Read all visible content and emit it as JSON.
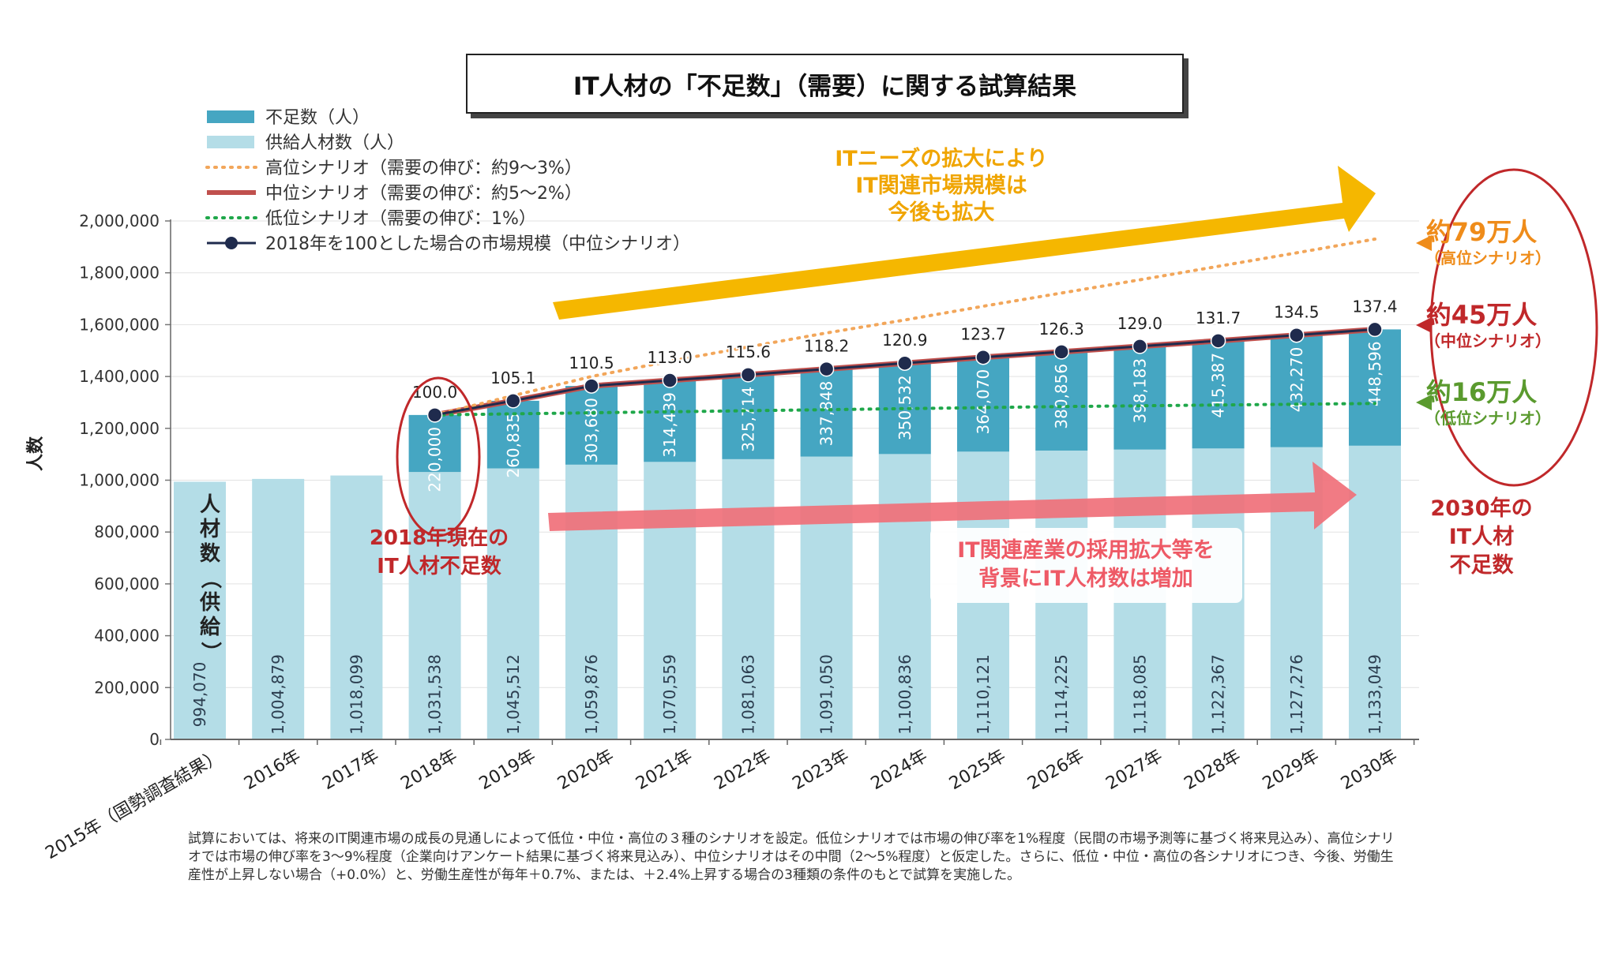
{
  "chart_data": {
    "type": "bar",
    "title": "IT人材の「不足数」（需要）に関する試算結果",
    "ylabel": "人数",
    "ylim": [
      0,
      2000000
    ],
    "yticks": [
      0,
      200000,
      400000,
      600000,
      800000,
      1000000,
      1200000,
      1400000,
      1600000,
      1800000,
      2000000
    ],
    "ytick_labels": [
      "0",
      "200,000",
      "400,000",
      "600,000",
      "800,000",
      "1,000,000",
      "1,200,000",
      "1,400,000",
      "1,600,000",
      "1,800,000",
      "2,000,000"
    ],
    "categories": [
      "2015年（国勢調査結果）",
      "2016年",
      "2017年",
      "2018年",
      "2019年",
      "2020年",
      "2021年",
      "2022年",
      "2023年",
      "2024年",
      "2025年",
      "2026年",
      "2027年",
      "2028年",
      "2029年",
      "2030年"
    ],
    "series": [
      {
        "name": "供給人材数（人）",
        "color": "#b4dde7",
        "values": [
          994070,
          1004879,
          1018099,
          1031538,
          1045512,
          1059876,
          1070559,
          1081063,
          1091050,
          1100836,
          1110121,
          1114225,
          1118085,
          1122367,
          1127276,
          1133049
        ],
        "labels": [
          "994,070",
          "1,004,879",
          "1,018,099",
          "1,031,538",
          "1,045,512",
          "1,059,876",
          "1,070,559",
          "1,081,063",
          "1,091,050",
          "1,100,836",
          "1,110,121",
          "1,114,225",
          "1,118,085",
          "1,122,367",
          "1,127,276",
          "1,133,049"
        ]
      },
      {
        "name": "不足数（人）",
        "color": "#45a6c2",
        "values": [
          null,
          null,
          null,
          220000,
          260835,
          303680,
          314439,
          325714,
          337848,
          350532,
          364070,
          380856,
          398183,
          415387,
          432270,
          448596
        ],
        "labels": [
          "",
          "",
          "",
          "220,000",
          "260,835",
          "303,680",
          "314,439",
          "325,714",
          "337,848",
          "350,532",
          "364,070",
          "380,856",
          "398,183",
          "415,387",
          "432,270",
          "448,596"
        ]
      },
      {
        "name": "高位シナリオ（需要の伸び：約9～3%）",
        "style": "dotted",
        "color": "#f2a65a",
        "values": [
          null,
          null,
          null,
          1251538,
          1326000,
          1400000,
          1459000,
          1514000,
          1568000,
          1618000,
          1671000,
          1722000,
          1773000,
          1825000,
          1877000,
          1930000
        ]
      },
      {
        "name": "中位シナリオ（需要の伸び：約5～2%）",
        "style": "solid",
        "color": "#c0504d",
        "values": [
          null,
          null,
          null,
          1251538,
          1306347,
          1363556,
          1384998,
          1406777,
          1428898,
          1451368,
          1474191,
          1495081,
          1516268,
          1537754,
          1559546,
          1581645
        ]
      },
      {
        "name": "低位シナリオ（需要の伸び：1%）",
        "style": "dotted",
        "color": "#1fa74a",
        "values": [
          null,
          null,
          null,
          1251538,
          1256000,
          1260000,
          1264000,
          1268000,
          1272000,
          1276000,
          1280000,
          1284000,
          1287000,
          1290000,
          1293000,
          1296000
        ]
      },
      {
        "name": "2018年を100とした場合の市場規模（中位シナリオ）",
        "style": "line-marker",
        "color": "#1f2b4d",
        "values": [
          null,
          null,
          null,
          1251538,
          1306347,
          1363556,
          1384998,
          1406777,
          1428898,
          1451368,
          1474191,
          1495081,
          1516268,
          1537754,
          1559546,
          1581645
        ],
        "index_values": [
          null,
          null,
          null,
          100.0,
          105.1,
          110.5,
          113.0,
          115.6,
          118.2,
          120.9,
          123.7,
          126.3,
          129.0,
          131.7,
          134.5,
          137.4
        ],
        "index_labels": [
          "",
          "",
          "",
          "100.0",
          "105.1",
          "110.5",
          "113.0",
          "115.6",
          "118.2",
          "120.9",
          "123.7",
          "126.3",
          "129.0",
          "131.7",
          "134.5",
          "137.4"
        ]
      }
    ],
    "legend_placement": "top-left",
    "annotations": {
      "supply_axis_label": "人材数（供給）",
      "yellow_arrow_text": [
        "ITニーズの拡大により",
        "IT関連市場規模は",
        "今後も拡大"
      ],
      "pink_arrow_text": [
        "IT関連産業の採用拡大等を",
        "背景にIT人材数は増加"
      ],
      "current_shortage_text": [
        "2018年現在の",
        "IT人材不足数"
      ],
      "scenario_high": "約79万人",
      "scenario_high_sub": "（高位シナリオ）",
      "scenario_mid": "約45万人",
      "scenario_mid_sub": "（中位シナリオ）",
      "scenario_low": "約16万人",
      "scenario_low_sub": "（低位シナリオ）",
      "shortage_2030_text": [
        "2030年の",
        "IT人材",
        "不足数"
      ]
    }
  },
  "footnote": "試算においては、将来のIT関連市場の成長の見通しによって低位・中位・高位の３種のシナリオを設定。低位シナリオでは市場の伸び率を1%程度（民間の市場予測等に基づく将来見込み）、高位シナリオでは市場の伸び率を3～9%程度（企業向けアンケート結果に基づく将来見込み）、中位シナリオはその中間（2～5%程度）と仮定した。さらに、低位・中位・高位の各シナリオにつき、今後、労働生産性が上昇しない場合（+0.0%）と、労働生産性が毎年＋0.7%、または、＋2.4%上昇する場合の3種類の条件のもとで試算を実施した。",
  "colors": {
    "supply": "#b4dde7",
    "shortage": "#45a6c2",
    "high": "#f2a65a",
    "mid": "#c0504d",
    "low": "#1fa74a",
    "market": "#1f2b4d",
    "arrow_yellow": "#f5b700",
    "arrow_pink": "#f0707a",
    "annot_red": "#c0282a",
    "annot_orange": "#ef8c1a",
    "annot_green": "#5a9a2e"
  }
}
